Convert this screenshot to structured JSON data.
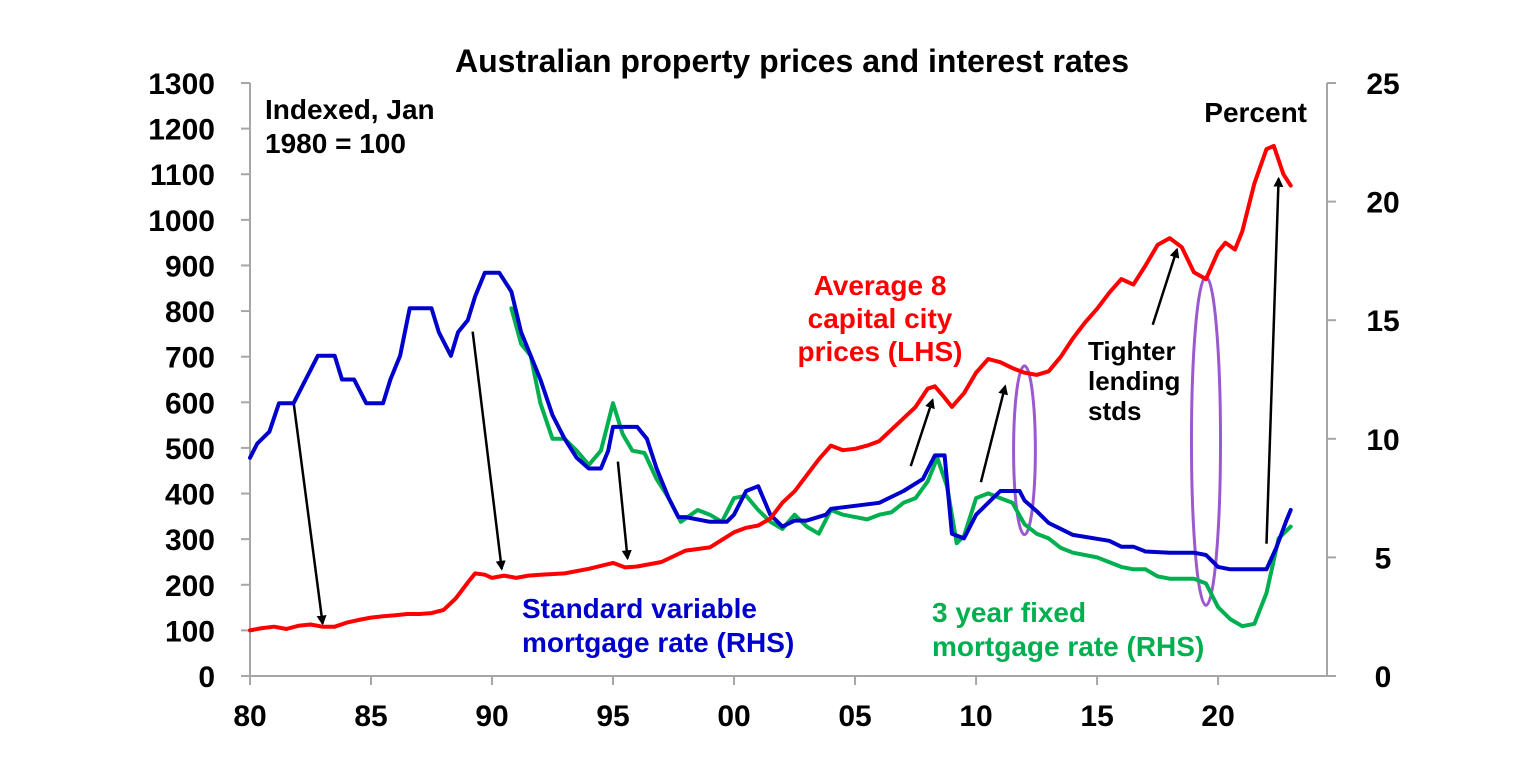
{
  "chart_data": {
    "type": "line",
    "title": "Australian property prices and interest rates",
    "left_axis": {
      "label": "Indexed, Jan 1980 = 100",
      "label_lines": [
        "Indexed, Jan",
        "1980 = 100"
      ],
      "range": [
        0,
        1300
      ],
      "ticks": [
        "0",
        "100",
        "200",
        "300",
        "400",
        "500",
        "600",
        "700",
        "800",
        "900",
        "1000",
        "1100",
        "1200",
        "1300"
      ]
    },
    "right_axis": {
      "label": "Percent",
      "range": [
        0,
        25
      ],
      "ticks": [
        "0",
        "5",
        "10",
        "15",
        "20",
        "25"
      ]
    },
    "x_axis": {
      "range": [
        1980,
        2024.5
      ],
      "tick_values": [
        1980,
        1985,
        1990,
        1995,
        2000,
        2005,
        2010,
        2015,
        2020
      ],
      "tick_labels": [
        "80",
        "85",
        "90",
        "95",
        "00",
        "05",
        "10",
        "15",
        "20"
      ]
    },
    "series": [
      {
        "name": "Average 8 capital city prices (LHS)",
        "label_lines": [
          "Average 8",
          "capital city",
          "prices (LHS)"
        ],
        "axis": "left",
        "color": "#ff0000",
        "points": [
          [
            1980,
            100
          ],
          [
            1980.5,
            105
          ],
          [
            1981,
            108
          ],
          [
            1981.5,
            103
          ],
          [
            1982,
            110
          ],
          [
            1982.5,
            113
          ],
          [
            1983,
            108
          ],
          [
            1983.5,
            108
          ],
          [
            1984,
            117
          ],
          [
            1984.5,
            123
          ],
          [
            1985,
            128
          ],
          [
            1985.5,
            131
          ],
          [
            1986,
            133
          ],
          [
            1986.5,
            136
          ],
          [
            1987,
            136
          ],
          [
            1987.5,
            138
          ],
          [
            1988,
            145
          ],
          [
            1988.5,
            170
          ],
          [
            1989,
            205
          ],
          [
            1989.3,
            225
          ],
          [
            1989.7,
            222
          ],
          [
            1990,
            215
          ],
          [
            1990.5,
            220
          ],
          [
            1991,
            215
          ],
          [
            1991.5,
            220
          ],
          [
            1992,
            222
          ],
          [
            1993,
            225
          ],
          [
            1994,
            235
          ],
          [
            1995,
            248
          ],
          [
            1995.5,
            238
          ],
          [
            1996,
            240
          ],
          [
            1997,
            250
          ],
          [
            1998,
            275
          ],
          [
            1999,
            282
          ],
          [
            2000,
            315
          ],
          [
            2000.5,
            325
          ],
          [
            2001,
            330
          ],
          [
            2001.5,
            345
          ],
          [
            2002,
            380
          ],
          [
            2002.5,
            405
          ],
          [
            2003,
            440
          ],
          [
            2003.5,
            475
          ],
          [
            2004,
            505
          ],
          [
            2004.5,
            495
          ],
          [
            2005,
            498
          ],
          [
            2005.5,
            505
          ],
          [
            2006,
            515
          ],
          [
            2006.5,
            540
          ],
          [
            2007,
            565
          ],
          [
            2007.5,
            590
          ],
          [
            2008,
            630
          ],
          [
            2008.3,
            635
          ],
          [
            2008.7,
            610
          ],
          [
            2009,
            590
          ],
          [
            2009.5,
            620
          ],
          [
            2010,
            665
          ],
          [
            2010.5,
            695
          ],
          [
            2011,
            688
          ],
          [
            2011.5,
            675
          ],
          [
            2012,
            665
          ],
          [
            2012.5,
            660
          ],
          [
            2013,
            668
          ],
          [
            2013.5,
            700
          ],
          [
            2014,
            740
          ],
          [
            2014.5,
            775
          ],
          [
            2015,
            805
          ],
          [
            2015.5,
            840
          ],
          [
            2016,
            870
          ],
          [
            2016.5,
            858
          ],
          [
            2017,
            900
          ],
          [
            2017.5,
            945
          ],
          [
            2018,
            960
          ],
          [
            2018.5,
            940
          ],
          [
            2019,
            885
          ],
          [
            2019.5,
            870
          ],
          [
            2020,
            930
          ],
          [
            2020.3,
            950
          ],
          [
            2020.7,
            935
          ],
          [
            2021,
            975
          ],
          [
            2021.5,
            1080
          ],
          [
            2022,
            1155
          ],
          [
            2022.3,
            1162
          ],
          [
            2022.7,
            1100
          ],
          [
            2023,
            1075
          ]
        ]
      },
      {
        "name": "Standard variable mortgage rate (RHS)",
        "label_lines": [
          "Standard variable",
          "mortgage rate (RHS)"
        ],
        "axis": "right",
        "color": "#0000cc",
        "points": [
          [
            1980,
            9.2
          ],
          [
            1980.3,
            9.8
          ],
          [
            1980.8,
            10.3
          ],
          [
            1981.2,
            11.5
          ],
          [
            1981.8,
            11.5
          ],
          [
            1982.3,
            12.5
          ],
          [
            1982.8,
            13.5
          ],
          [
            1983.5,
            13.5
          ],
          [
            1983.8,
            12.5
          ],
          [
            1984.3,
            12.5
          ],
          [
            1984.8,
            11.5
          ],
          [
            1985.5,
            11.5
          ],
          [
            1985.8,
            12.5
          ],
          [
            1986.2,
            13.5
          ],
          [
            1986.6,
            15.5
          ],
          [
            1987.5,
            15.5
          ],
          [
            1987.8,
            14.5
          ],
          [
            1988.3,
            13.5
          ],
          [
            1988.6,
            14.5
          ],
          [
            1989,
            15
          ],
          [
            1989.3,
            16
          ],
          [
            1989.7,
            17
          ],
          [
            1990.3,
            17
          ],
          [
            1990.8,
            16.2
          ],
          [
            1991.2,
            14.5
          ],
          [
            1991.6,
            13.5
          ],
          [
            1992,
            12.5
          ],
          [
            1992.5,
            11
          ],
          [
            1993,
            10
          ],
          [
            1993.5,
            9.2
          ],
          [
            1994,
            8.75
          ],
          [
            1994.5,
            8.75
          ],
          [
            1994.8,
            9.5
          ],
          [
            1995,
            10.5
          ],
          [
            1995.5,
            10.5
          ],
          [
            1996,
            10.5
          ],
          [
            1996.4,
            10
          ],
          [
            1996.8,
            8.75
          ],
          [
            1997.3,
            7.5
          ],
          [
            1997.7,
            6.7
          ],
          [
            1998,
            6.7
          ],
          [
            1999,
            6.5
          ],
          [
            1999.7,
            6.5
          ],
          [
            2000,
            6.8
          ],
          [
            2000.5,
            7.8
          ],
          [
            2001,
            8
          ],
          [
            2001.5,
            6.8
          ],
          [
            2002,
            6.3
          ],
          [
            2002.5,
            6.55
          ],
          [
            2003,
            6.55
          ],
          [
            2003.8,
            6.8
          ],
          [
            2004,
            7.05
          ],
          [
            2006,
            7.3
          ],
          [
            2007,
            7.8
          ],
          [
            2007.8,
            8.3
          ],
          [
            2008.3,
            9.3
          ],
          [
            2008.7,
            9.3
          ],
          [
            2009,
            6
          ],
          [
            2009.5,
            5.8
          ],
          [
            2010,
            6.8
          ],
          [
            2010.5,
            7.3
          ],
          [
            2011,
            7.8
          ],
          [
            2011.8,
            7.8
          ],
          [
            2012,
            7.4
          ],
          [
            2012.5,
            6.95
          ],
          [
            2013,
            6.45
          ],
          [
            2013.5,
            6.2
          ],
          [
            2014,
            5.95
          ],
          [
            2015.5,
            5.7
          ],
          [
            2016,
            5.45
          ],
          [
            2016.5,
            5.45
          ],
          [
            2017,
            5.25
          ],
          [
            2018,
            5.2
          ],
          [
            2019,
            5.2
          ],
          [
            2019.5,
            5.1
          ],
          [
            2019.8,
            4.8
          ],
          [
            2020,
            4.6
          ],
          [
            2020.5,
            4.5
          ],
          [
            2022,
            4.5
          ],
          [
            2022.4,
            5.4
          ],
          [
            2022.8,
            6.5
          ],
          [
            2023,
            7
          ]
        ]
      },
      {
        "name": "3 year fixed mortgage rate (RHS)",
        "label_lines": [
          "3 year fixed",
          "mortgage rate (RHS)"
        ],
        "axis": "right",
        "color": "#00b050",
        "points": [
          [
            1990.8,
            15.5
          ],
          [
            1991.2,
            14
          ],
          [
            1991.6,
            13.5
          ],
          [
            1992,
            11.5
          ],
          [
            1992.5,
            10
          ],
          [
            1993,
            10
          ],
          [
            1993.5,
            9.5
          ],
          [
            1994,
            8.9
          ],
          [
            1994.5,
            9.5
          ],
          [
            1995,
            11.5
          ],
          [
            1995.4,
            10.2
          ],
          [
            1995.8,
            9.5
          ],
          [
            1996.3,
            9.4
          ],
          [
            1996.8,
            8.3
          ],
          [
            1997.3,
            7.5
          ],
          [
            1997.8,
            6.5
          ],
          [
            1998.5,
            7
          ],
          [
            1999,
            6.8
          ],
          [
            1999.5,
            6.5
          ],
          [
            2000,
            7.5
          ],
          [
            2000.5,
            7.6
          ],
          [
            2001,
            7
          ],
          [
            2001.5,
            6.5
          ],
          [
            2002,
            6.2
          ],
          [
            2002.5,
            6.8
          ],
          [
            2003,
            6.3
          ],
          [
            2003.5,
            6
          ],
          [
            2004,
            7
          ],
          [
            2004.5,
            6.8
          ],
          [
            2005,
            6.7
          ],
          [
            2005.5,
            6.6
          ],
          [
            2006,
            6.8
          ],
          [
            2006.5,
            6.9
          ],
          [
            2007,
            7.3
          ],
          [
            2007.5,
            7.5
          ],
          [
            2008,
            8.2
          ],
          [
            2008.4,
            9.2
          ],
          [
            2008.8,
            8
          ],
          [
            2009.2,
            5.6
          ],
          [
            2009.5,
            5.9
          ],
          [
            2010,
            7.5
          ],
          [
            2010.5,
            7.7
          ],
          [
            2011,
            7.5
          ],
          [
            2011.5,
            7.3
          ],
          [
            2012,
            6.4
          ],
          [
            2012.5,
            6
          ],
          [
            2013,
            5.8
          ],
          [
            2013.5,
            5.4
          ],
          [
            2014,
            5.2
          ],
          [
            2015,
            5
          ],
          [
            2016,
            4.6
          ],
          [
            2016.5,
            4.5
          ],
          [
            2017,
            4.5
          ],
          [
            2017.5,
            4.2
          ],
          [
            2018,
            4.1
          ],
          [
            2019,
            4.1
          ],
          [
            2019.5,
            3.9
          ],
          [
            2020,
            2.9
          ],
          [
            2020.5,
            2.4
          ],
          [
            2021,
            2.1
          ],
          [
            2021.5,
            2.2
          ],
          [
            2022,
            3.5
          ],
          [
            2022.5,
            5.8
          ],
          [
            2023,
            6.3
          ]
        ]
      }
    ],
    "annotations": {
      "tighter_lending_label": [
        "Tighter",
        "lending",
        "stds"
      ],
      "arrows": [
        {
          "from": [
            1981.8,
            600
          ],
          "to": [
            1983,
            115
          ],
          "axis": "left"
        },
        {
          "from": [
            1989.2,
            755
          ],
          "to": [
            1990.4,
            235
          ],
          "axis": "left"
        },
        {
          "from": [
            1995.2,
            470
          ],
          "to": [
            1995.6,
            258
          ],
          "axis": "left"
        },
        {
          "from": [
            2007.3,
            460
          ],
          "to": [
            2008.2,
            605
          ],
          "axis": "left"
        },
        {
          "from": [
            2010.2,
            425
          ],
          "to": [
            2011.2,
            635
          ],
          "axis": "left"
        },
        {
          "from": [
            2017.3,
            770
          ],
          "to": [
            2018.3,
            935
          ],
          "axis": "left"
        },
        {
          "from": [
            2022.0,
            290
          ],
          "to": [
            2022.5,
            1090
          ],
          "axis": "left"
        }
      ],
      "ellipses": [
        {
          "cx": 2012,
          "cy": 495,
          "rx": 0.45,
          "ry": 185,
          "axis": "left"
        },
        {
          "cx": 2019.5,
          "cy": 515,
          "rx": 0.6,
          "ry": 360,
          "axis": "left"
        }
      ]
    }
  }
}
